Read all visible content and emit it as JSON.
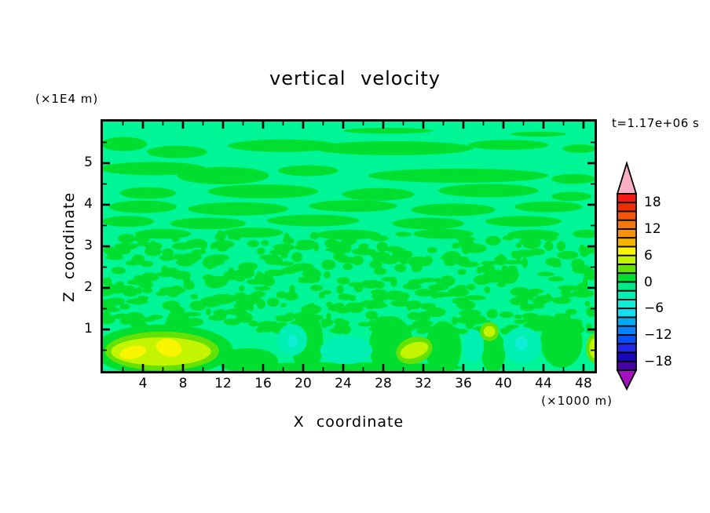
{
  "page": {
    "background": "#ffffff"
  },
  "title": "vertical velocity",
  "annotations": {
    "z_axis_unit": "(×1E4 m)",
    "time_label": "t=1.17e+06 s",
    "x_axis_unit": "(×1000 m)"
  },
  "axes": {
    "x_label": "X coordinate",
    "z_label": "Z coordinate",
    "x_range": [
      0,
      49.1
    ],
    "z_range": [
      0,
      6
    ],
    "x_major_ticks": [
      4,
      8,
      12,
      16,
      20,
      24,
      28,
      32,
      36,
      40,
      44,
      48
    ],
    "x_minor_ticks": [
      2,
      6,
      10,
      14,
      18,
      22,
      26,
      30,
      34,
      38,
      42,
      46
    ],
    "z_major_ticks": [
      1,
      2,
      3,
      4,
      5
    ],
    "z_minor_ticks": [
      0.5,
      1.5,
      2.5,
      3.5,
      4.5,
      5.5
    ],
    "x_tick_labels": [
      "4",
      "8",
      "12",
      "16",
      "20",
      "24",
      "28",
      "32",
      "36",
      "40",
      "44",
      "48"
    ],
    "z_tick_labels": [
      "1",
      "2",
      "3",
      "4",
      "5"
    ]
  },
  "colorbar": {
    "tick_labels": [
      "18",
      "12",
      "6",
      "0",
      "−6",
      "−12",
      "−18"
    ],
    "tick_values": [
      18,
      12,
      6,
      0,
      -6,
      -12,
      -18
    ],
    "min": -20,
    "max": 20,
    "segment_size": 2,
    "colors_low_to_high": [
      "#4703A5",
      "#1908BE",
      "#1E28E6",
      "#0550FA",
      "#0782FA",
      "#00AAF5",
      "#18DCF0",
      "#0FEDD5",
      "#00F0B4",
      "#00EB87",
      "#00DF30",
      "#64E105",
      "#C3F500",
      "#F8F500",
      "#F6B400",
      "#F7930A",
      "#F5780A",
      "#F5560A",
      "#EF2D05",
      "#F81914"
    ],
    "over_arrow_color": "#FBAFC3",
    "under_arrow_color": "#A511BE",
    "frame_color": "#000000"
  },
  "chart_data": {
    "type": "heatmap",
    "subtype": "filled-contour",
    "title": "vertical velocity",
    "xlabel": "X coordinate",
    "ylabel": "Z coordinate",
    "x_range": [
      0,
      49.1
    ],
    "z_range": [
      0,
      6
    ],
    "time_annotation": "t=1.17e+06 s",
    "contour_interval": 2,
    "value_range_shown": [
      -20,
      20
    ],
    "background_band": {
      "level_low": -2,
      "level_high": 0,
      "color": "#00F596"
    },
    "field_description": "Mostly values in -2..2 band: smooth elongated horizontal green (0..2) bands over spring-green (-2..0) background in upper half (z>3.2), fine speckled green/spring-green turbulence for 1<z<3.3, larger structures below z=1.2 including updraft maxima 6..8 near x=1..8 and downdraft minima -6..-4 near x=19 and x=42",
    "feature_format": "[level_low, x_center, z_center, x_radius, z_radius, rot_deg?]",
    "features": [
      [
        0,
        28.5,
        5.78,
        4.5,
        0.07
      ],
      [
        0,
        43.5,
        5.7,
        2.8,
        0.06
      ],
      [
        0,
        2.1,
        5.46,
        2.3,
        0.17
      ],
      [
        0,
        7.4,
        5.27,
        3.0,
        0.15
      ],
      [
        0,
        18,
        5.42,
        5.5,
        0.15
      ],
      [
        0,
        29,
        5.36,
        8.0,
        0.17
      ],
      [
        0,
        40.5,
        5.44,
        4.0,
        0.12
      ],
      [
        0,
        47.6,
        5.35,
        1.7,
        0.1
      ],
      [
        0,
        5,
        4.87,
        5.3,
        0.16
      ],
      [
        0,
        12,
        4.7,
        4.6,
        0.21
      ],
      [
        0,
        20.5,
        4.82,
        3.0,
        0.13
      ],
      [
        0,
        35.5,
        4.7,
        9.0,
        0.17
      ],
      [
        0,
        47,
        4.62,
        2.2,
        0.12
      ],
      [
        0,
        4.5,
        4.28,
        2.8,
        0.14
      ],
      [
        0,
        16,
        4.32,
        5.5,
        0.17
      ],
      [
        0,
        27.5,
        4.25,
        3.6,
        0.15
      ],
      [
        0,
        38.5,
        4.34,
        5.0,
        0.16
      ],
      [
        0,
        46.8,
        4.2,
        2.0,
        0.11
      ],
      [
        0,
        4,
        3.95,
        3.4,
        0.15
      ],
      [
        0,
        13.5,
        3.9,
        5.0,
        0.16
      ],
      [
        0,
        25,
        3.97,
        4.4,
        0.14
      ],
      [
        0,
        35,
        3.88,
        4.2,
        0.15
      ],
      [
        0,
        44.5,
        3.95,
        3.4,
        0.13
      ],
      [
        0,
        2.5,
        3.6,
        2.6,
        0.13
      ],
      [
        0,
        10.5,
        3.55,
        3.8,
        0.14
      ],
      [
        0,
        21,
        3.62,
        4.6,
        0.14
      ],
      [
        0,
        32.5,
        3.55,
        3.6,
        0.14
      ],
      [
        0,
        42,
        3.6,
        3.8,
        0.13
      ],
      [
        0,
        6,
        3.3,
        2.8,
        0.12
      ],
      [
        0,
        15,
        3.33,
        3.0,
        0.12
      ],
      [
        0,
        24.5,
        3.28,
        3.2,
        0.12
      ],
      [
        0,
        34,
        3.3,
        3.0,
        0.12
      ],
      [
        0,
        43,
        3.28,
        2.6,
        0.12
      ],
      [
        0,
        48.3,
        3.3,
        1.4,
        0.1
      ],
      [
        0,
        6,
        0.5,
        7.0,
        0.62
      ],
      [
        0,
        14.5,
        0.25,
        3.0,
        0.3
      ],
      [
        0,
        20.4,
        0.7,
        1.6,
        0.78
      ],
      [
        0,
        28.8,
        0.6,
        2.2,
        0.72
      ],
      [
        0,
        34,
        0.55,
        1.8,
        0.65
      ],
      [
        0,
        39,
        0.45,
        1.2,
        0.5
      ],
      [
        0,
        45.8,
        0.7,
        2.1,
        0.62
      ],
      [
        0,
        24,
        0.08,
        12.0,
        0.13
      ],
      [
        0,
        44,
        1.15,
        1.5,
        0.2
      ],
      [
        -4,
        18.9,
        0.75,
        1.5,
        0.38
      ],
      [
        -4,
        24.3,
        0.5,
        2.6,
        0.34
      ],
      [
        -4,
        37,
        0.6,
        1.05,
        0.4
      ],
      [
        -4,
        41.9,
        0.62,
        1.9,
        0.44
      ],
      [
        -6,
        18.95,
        0.72,
        0.5,
        0.15
      ],
      [
        -6,
        41.8,
        0.66,
        0.62,
        0.17
      ],
      [
        2,
        5.9,
        0.48,
        5.7,
        0.47
      ],
      [
        2,
        31.1,
        0.5,
        1.85,
        0.32,
        -18
      ],
      [
        2,
        38.6,
        0.95,
        0.95,
        0.23
      ],
      [
        2,
        49,
        0.55,
        0.75,
        0.34
      ],
      [
        4,
        5.8,
        0.47,
        5.0,
        0.34
      ],
      [
        4,
        31.1,
        0.5,
        1.45,
        0.18,
        -18
      ],
      [
        4,
        38.6,
        0.95,
        0.58,
        0.13
      ],
      [
        4,
        49.1,
        0.55,
        0.5,
        0.24
      ],
      [
        6,
        3,
        0.45,
        1.35,
        0.15,
        -12
      ],
      [
        6,
        6.6,
        0.56,
        1.3,
        0.21,
        14
      ]
    ],
    "speckle_bands": [
      {
        "seed": 12,
        "count": 390,
        "x": [
          0.1,
          49.0
        ],
        "z": [
          1.12,
          3.3
        ],
        "rx": [
          0.25,
          1.15
        ],
        "rz": [
          0.05,
          0.13
        ],
        "level": 0
      },
      {
        "seed": 5,
        "count": 70,
        "x": [
          15,
          49
        ],
        "z": [
          0.95,
          1.2
        ],
        "rx": [
          0.2,
          0.8
        ],
        "rz": [
          0.05,
          0.1
        ],
        "level": 0
      }
    ]
  }
}
